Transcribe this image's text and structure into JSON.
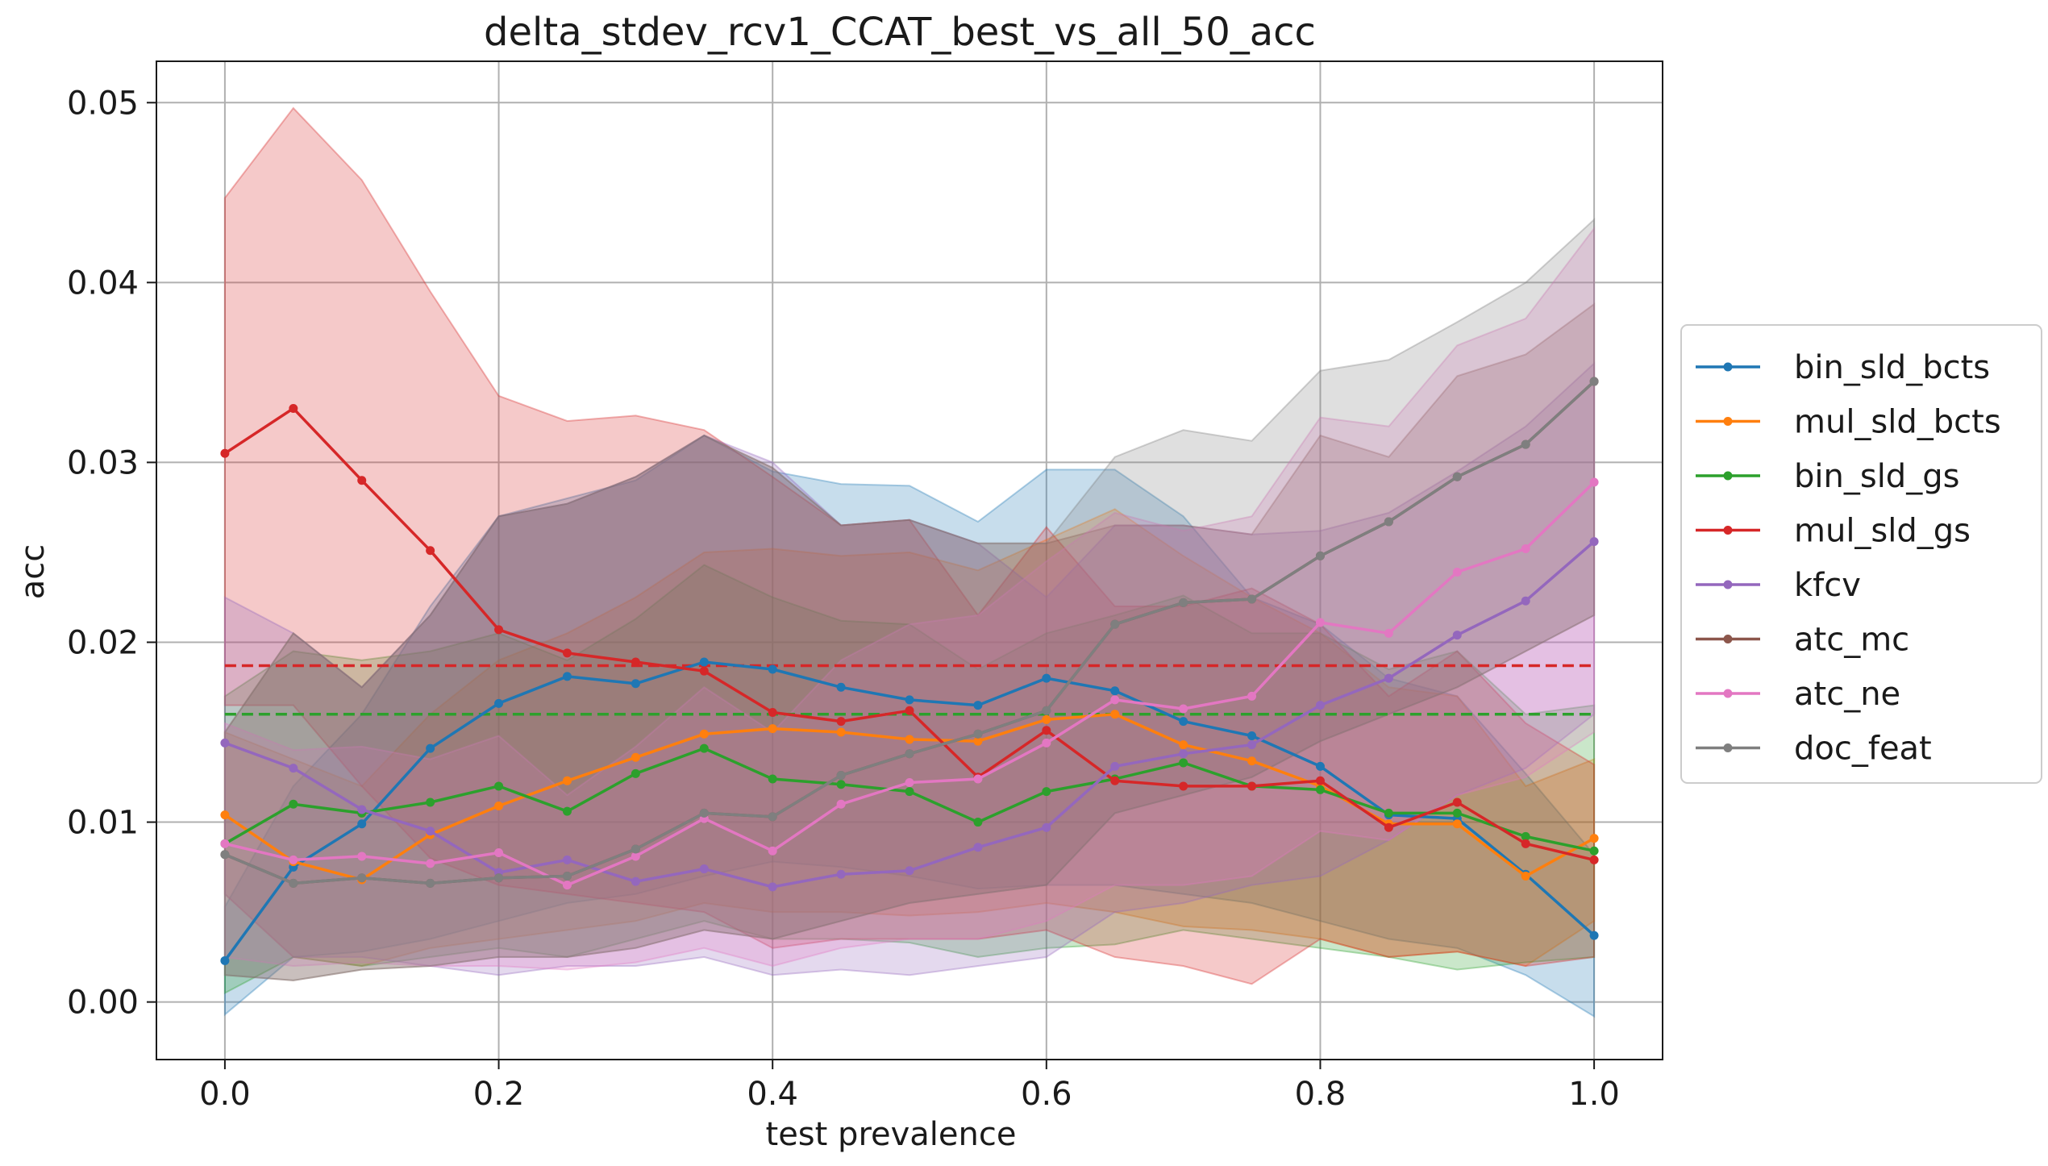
{
  "chart_data": {
    "type": "line",
    "title": "delta_stdev_rcv1_CCAT_best_vs_all_50_acc",
    "xlabel": "test prevalence",
    "ylabel": "acc",
    "xlim": [
      -0.05,
      1.05
    ],
    "ylim": [
      -0.0032,
      0.0523
    ],
    "xticks": [
      0.0,
      0.2,
      0.4,
      0.6,
      0.8,
      1.0
    ],
    "xtick_labels": [
      "0.0",
      "0.2",
      "0.4",
      "0.6",
      "0.8",
      "1.0"
    ],
    "yticks": [
      0.0,
      0.01,
      0.02,
      0.03,
      0.04,
      0.05
    ],
    "ytick_labels": [
      "0.00",
      "0.01",
      "0.02",
      "0.03",
      "0.04",
      "0.05"
    ],
    "grid": true,
    "legend_position": "outside-right",
    "x": [
      0.0,
      0.05,
      0.1,
      0.15,
      0.2,
      0.25,
      0.3,
      0.35,
      0.4,
      0.45,
      0.5,
      0.55,
      0.6,
      0.65,
      0.7,
      0.75,
      0.8,
      0.85,
      0.9,
      0.95,
      1.0
    ],
    "series": [
      {
        "name": "bin_sld_bcts",
        "color": "#1f77b4",
        "values": [
          0.0023,
          0.0075,
          0.0099,
          0.0141,
          0.0166,
          0.0181,
          0.0177,
          0.0189,
          0.0185,
          0.0175,
          0.0168,
          0.0165,
          0.018,
          0.0173,
          0.0156,
          0.0148,
          0.0131,
          0.0104,
          0.0102,
          0.0071,
          0.0037
        ],
        "lower": [
          -0.0007,
          0.0025,
          0.0028,
          0.0035,
          0.0045,
          0.0055,
          0.006,
          0.007,
          0.0078,
          0.0075,
          0.007,
          0.0063,
          0.0065,
          0.0065,
          0.006,
          0.0055,
          0.0045,
          0.0035,
          0.003,
          0.0015,
          -0.0008
        ],
        "upper": [
          0.0053,
          0.012,
          0.016,
          0.022,
          0.027,
          0.028,
          0.029,
          0.0315,
          0.0295,
          0.0288,
          0.0287,
          0.0267,
          0.0296,
          0.0296,
          0.027,
          0.0225,
          0.021,
          0.018,
          0.017,
          0.0127,
          0.0082
        ]
      },
      {
        "name": "mul_sld_bcts",
        "color": "#ff7f0e",
        "values": [
          0.0104,
          0.0078,
          0.0068,
          0.0093,
          0.0109,
          0.0123,
          0.0136,
          0.0149,
          0.0152,
          0.015,
          0.0146,
          0.0145,
          0.0157,
          0.016,
          0.0143,
          0.0134,
          0.012,
          0.0099,
          0.0099,
          0.007,
          0.0091
        ],
        "lower": [
          0.006,
          0.0025,
          0.002,
          0.003,
          0.0035,
          0.004,
          0.0045,
          0.0055,
          0.005,
          0.005,
          0.0048,
          0.005,
          0.0055,
          0.005,
          0.0042,
          0.004,
          0.0035,
          0.0025,
          0.0028,
          0.002,
          0.0045
        ],
        "upper": [
          0.015,
          0.0135,
          0.012,
          0.016,
          0.019,
          0.0205,
          0.0225,
          0.025,
          0.0252,
          0.0248,
          0.025,
          0.024,
          0.0257,
          0.0274,
          0.0248,
          0.0225,
          0.0205,
          0.0175,
          0.017,
          0.012,
          0.0135
        ]
      },
      {
        "name": "bin_sld_gs",
        "color": "#2ca02c",
        "values": [
          0.0088,
          0.011,
          0.0105,
          0.0111,
          0.012,
          0.0106,
          0.0127,
          0.0141,
          0.0124,
          0.0121,
          0.0117,
          0.01,
          0.0117,
          0.0124,
          0.0133,
          0.012,
          0.0118,
          0.0105,
          0.0105,
          0.0092,
          0.0084
        ],
        "lower": [
          0.0005,
          0.0025,
          0.002,
          0.0025,
          0.003,
          0.0025,
          0.0035,
          0.0045,
          0.0035,
          0.0035,
          0.0033,
          0.0025,
          0.003,
          0.0032,
          0.004,
          0.0035,
          0.003,
          0.0025,
          0.0018,
          0.0022,
          0.0025
        ],
        "upper": [
          0.017,
          0.0195,
          0.019,
          0.0195,
          0.0205,
          0.019,
          0.0213,
          0.0243,
          0.0225,
          0.0212,
          0.021,
          0.0185,
          0.0205,
          0.0215,
          0.0226,
          0.0205,
          0.0205,
          0.0185,
          0.0195,
          0.016,
          0.0165
        ]
      },
      {
        "name": "mul_sld_gs",
        "color": "#d62728",
        "values": [
          0.0305,
          0.033,
          0.029,
          0.0251,
          0.0207,
          0.0194,
          0.0189,
          0.0184,
          0.0161,
          0.0156,
          0.0162,
          0.0125,
          0.0151,
          0.0123,
          0.012,
          0.012,
          0.0123,
          0.0097,
          0.0111,
          0.0088,
          0.0079
        ],
        "lower": [
          0.0165,
          0.0165,
          0.012,
          0.008,
          0.0065,
          0.006,
          0.0055,
          0.005,
          0.003,
          0.0035,
          0.0035,
          0.0035,
          0.004,
          0.0025,
          0.002,
          0.001,
          0.0035,
          0.0025,
          0.0028,
          0.002,
          0.0025
        ],
        "upper": [
          0.0447,
          0.0497,
          0.0457,
          0.0395,
          0.0337,
          0.0323,
          0.0326,
          0.0318,
          0.0292,
          0.0265,
          0.0268,
          0.0215,
          0.0264,
          0.022,
          0.022,
          0.023,
          0.021,
          0.017,
          0.0195,
          0.0155,
          0.0132
        ]
      },
      {
        "name": "kfcv",
        "color": "#9467bd",
        "values": [
          0.0144,
          0.013,
          0.0107,
          0.0095,
          0.0072,
          0.0079,
          0.0067,
          0.0074,
          0.0064,
          0.0071,
          0.0073,
          0.0086,
          0.0097,
          0.0131,
          0.0138,
          0.0143,
          0.0165,
          0.018,
          0.0204,
          0.0223,
          0.0256
        ],
        "lower": [
          0.006,
          0.0025,
          0.0025,
          0.002,
          0.0015,
          0.002,
          0.002,
          0.0025,
          0.0015,
          0.0018,
          0.0015,
          0.002,
          0.0025,
          0.005,
          0.0055,
          0.0065,
          0.007,
          0.009,
          0.0115,
          0.013,
          0.016
        ],
        "upper": [
          0.0225,
          0.0205,
          0.0175,
          0.0215,
          0.027,
          0.0277,
          0.0292,
          0.0315,
          0.03,
          0.0265,
          0.0268,
          0.0255,
          0.0225,
          0.0265,
          0.0265,
          0.026,
          0.0262,
          0.0272,
          0.0295,
          0.032,
          0.0355
        ]
      },
      {
        "name": "atc_mc",
        "color": "#8c564b",
        "values": [
          0.0082,
          0.0066,
          0.0069,
          0.0066,
          0.0069,
          0.007,
          0.0085,
          0.0105,
          0.0103,
          0.0126,
          0.0138,
          0.0149,
          0.0162,
          0.021,
          0.0222,
          0.0224,
          0.0248,
          0.0267,
          0.0292,
          0.031,
          0.0345
        ],
        "lower": [
          0.0015,
          0.0012,
          0.0018,
          0.002,
          0.0025,
          0.0025,
          0.003,
          0.004,
          0.0035,
          0.0045,
          0.0055,
          0.006,
          0.0065,
          0.0105,
          0.0115,
          0.0125,
          0.0145,
          0.016,
          0.0175,
          0.0195,
          0.0215
        ],
        "upper": [
          0.015,
          0.0205,
          0.0175,
          0.0215,
          0.027,
          0.0277,
          0.0292,
          0.0315,
          0.0297,
          0.0265,
          0.0268,
          0.0255,
          0.0255,
          0.0265,
          0.0265,
          0.026,
          0.0315,
          0.0303,
          0.0348,
          0.036,
          0.0388
        ]
      },
      {
        "name": "atc_ne",
        "color": "#e377c2",
        "values": [
          0.0088,
          0.0079,
          0.0081,
          0.0077,
          0.0083,
          0.0065,
          0.0081,
          0.0102,
          0.0084,
          0.011,
          0.0122,
          0.0124,
          0.0144,
          0.0168,
          0.0163,
          0.017,
          0.0211,
          0.0205,
          0.0239,
          0.0252,
          0.0289
        ],
        "lower": [
          0.0025,
          0.002,
          0.0022,
          0.002,
          0.002,
          0.0018,
          0.0022,
          0.003,
          0.002,
          0.003,
          0.0035,
          0.0035,
          0.0045,
          0.0065,
          0.0065,
          0.007,
          0.0095,
          0.009,
          0.0115,
          0.0125,
          0.015
        ],
        "upper": [
          0.0155,
          0.014,
          0.0142,
          0.0135,
          0.0148,
          0.0115,
          0.0142,
          0.0175,
          0.015,
          0.019,
          0.021,
          0.0215,
          0.0245,
          0.0272,
          0.0262,
          0.027,
          0.0325,
          0.032,
          0.0365,
          0.038,
          0.043
        ]
      },
      {
        "name": "doc_feat",
        "color": "#7f7f7f",
        "values": [
          0.0082,
          0.0066,
          0.0069,
          0.0066,
          0.0069,
          0.007,
          0.0085,
          0.0105,
          0.0103,
          0.0126,
          0.0138,
          0.0149,
          0.0162,
          0.021,
          0.0222,
          0.0224,
          0.0248,
          0.0267,
          0.0292,
          0.031,
          0.0345
        ],
        "lower": [
          0.0015,
          0.0012,
          0.0018,
          0.002,
          0.0025,
          0.0025,
          0.003,
          0.004,
          0.0035,
          0.0045,
          0.0055,
          0.006,
          0.0065,
          0.0105,
          0.0115,
          0.0125,
          0.0145,
          0.016,
          0.0175,
          0.0195,
          0.0215
        ],
        "upper": [
          0.015,
          0.0205,
          0.0175,
          0.0215,
          0.027,
          0.0277,
          0.0292,
          0.0315,
          0.0297,
          0.0265,
          0.0268,
          0.0255,
          0.0255,
          0.0303,
          0.0318,
          0.0312,
          0.0351,
          0.0357,
          0.0378,
          0.04,
          0.0435
        ]
      }
    ],
    "reference_lines": [
      {
        "color": "#d62728",
        "y": 0.0187
      },
      {
        "color": "#2ca02c",
        "y": 0.016
      }
    ]
  }
}
